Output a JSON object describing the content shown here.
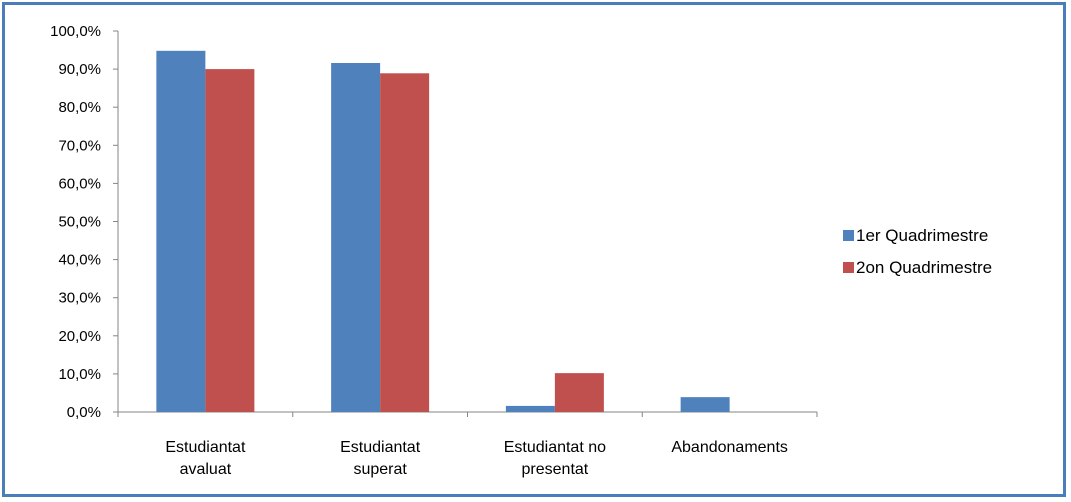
{
  "chart_data": {
    "type": "bar",
    "categories": [
      [
        "Estudiantat",
        "avaluat"
      ],
      [
        "Estudiantat",
        "superat"
      ],
      [
        "Estudiantat no",
        "presentat"
      ],
      [
        "Abandonaments"
      ]
    ],
    "series": [
      {
        "name": "1er Quadrimestre",
        "color": "#4f81bd",
        "values": [
          94.8,
          91.6,
          1.6,
          3.9
        ]
      },
      {
        "name": "2on Quadrimestre",
        "color": "#c0504d",
        "values": [
          90.0,
          88.9,
          10.2,
          0.0
        ]
      }
    ],
    "title": "",
    "xlabel": "",
    "ylabel": "",
    "ylim": [
      0,
      100
    ],
    "yticks": [
      0,
      10,
      20,
      30,
      40,
      50,
      60,
      70,
      80,
      90,
      100
    ],
    "ytick_labels": [
      "0,0%",
      "10,0%",
      "20,0%",
      "30,0%",
      "40,0%",
      "50,0%",
      "60,0%",
      "70,0%",
      "80,0%",
      "90,0%",
      "100,0%"
    ],
    "grid": false,
    "legend": "right"
  }
}
